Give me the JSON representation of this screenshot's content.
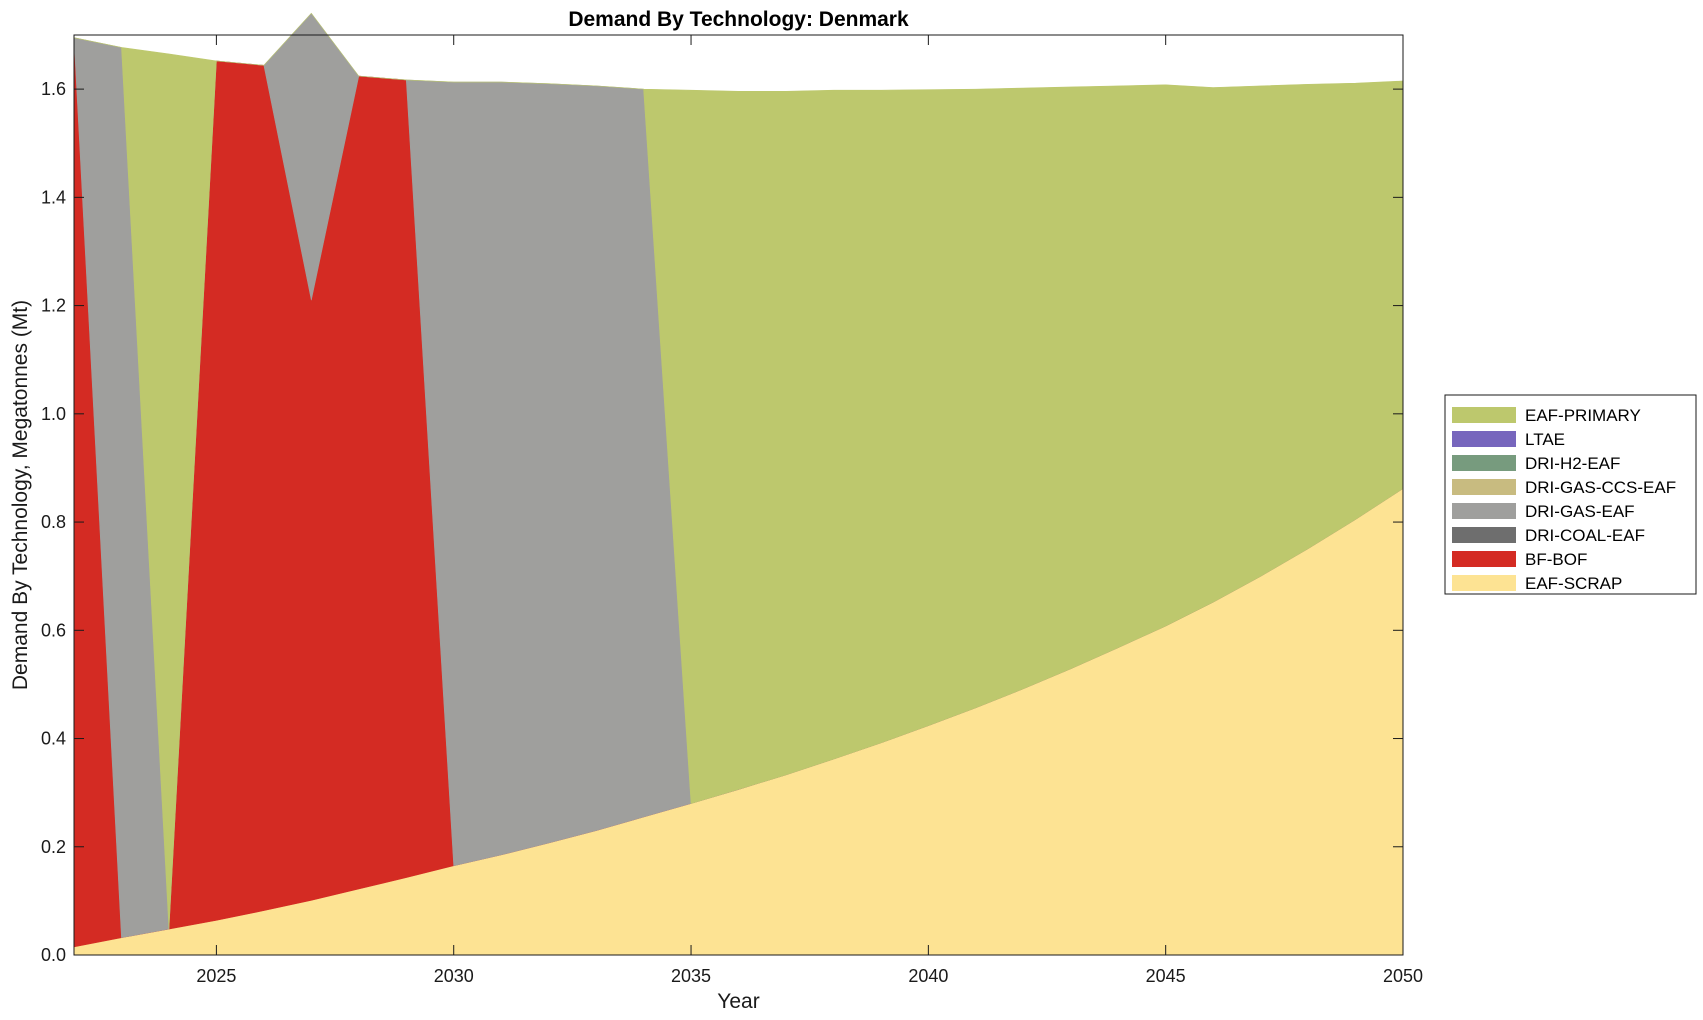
{
  "chart_data": {
    "type": "area",
    "stacked": true,
    "title": "Demand By Technology: Denmark",
    "xlabel": "Year",
    "ylabel": "Demand By Technology, Megatonnes (Mt)",
    "xlim": [
      2022,
      2050
    ],
    "ylim": [
      0,
      1.7
    ],
    "xticks": [
      2025,
      2030,
      2035,
      2040,
      2045,
      2050
    ],
    "yticks": [
      0.0,
      0.2,
      0.4,
      0.6,
      0.8,
      1.0,
      1.2,
      1.4,
      1.6
    ],
    "ytick_labels": [
      "0.0",
      "0.2",
      "0.4",
      "0.6",
      "0.8",
      "1.0",
      "1.2",
      "1.4",
      "1.6"
    ],
    "grid": false,
    "legend_position": "right",
    "x": [
      2022,
      2023,
      2024,
      2025,
      2026,
      2027,
      2028,
      2029,
      2030,
      2031,
      2032,
      2033,
      2034,
      2035,
      2036,
      2037,
      2038,
      2039,
      2040,
      2041,
      2042,
      2043,
      2044,
      2045,
      2046,
      2047,
      2048,
      2049,
      2050
    ],
    "series": [
      {
        "name": "EAF-SCRAP",
        "color": "#fde393",
        "values": [
          0.015,
          0.032,
          0.048,
          0.064,
          0.082,
          0.101,
          0.122,
          0.143,
          0.165,
          0.185,
          0.207,
          0.23,
          0.255,
          0.28,
          0.306,
          0.333,
          0.362,
          0.392,
          0.424,
          0.457,
          0.492,
          0.529,
          0.568,
          0.608,
          0.652,
          0.7,
          0.751,
          0.805,
          0.862
        ]
      },
      {
        "name": "BF-BOF",
        "color": "#d42b23",
        "values": [
          1.68,
          0,
          0,
          1.588,
          1.562,
          1.109,
          1.502,
          1.474,
          0,
          0,
          0,
          0,
          0,
          0,
          0,
          0,
          0,
          0,
          0,
          0,
          0,
          0,
          0,
          0,
          0,
          0,
          0,
          0,
          0
        ]
      },
      {
        "name": "DRI-COAL-EAF",
        "color": "#6e6e6e",
        "values": [
          0,
          0,
          0,
          0,
          0,
          0,
          0,
          0,
          0,
          0,
          0,
          0,
          0,
          0,
          0,
          0,
          0,
          0,
          0,
          0,
          0,
          0,
          0,
          0,
          0,
          0,
          0,
          0,
          0
        ]
      },
      {
        "name": "DRI-GAS-EAF",
        "color": "#9f9f9d",
        "values": [
          0,
          1.645,
          0,
          0,
          0,
          0.53,
          0,
          0,
          1.448,
          1.428,
          1.403,
          1.376,
          1.345,
          0,
          0,
          0,
          0,
          0,
          0,
          0,
          0,
          0,
          0,
          0,
          0,
          0,
          0,
          0,
          0
        ]
      },
      {
        "name": "DRI-GAS-CCS-EAF",
        "color": "#c8bb80",
        "values": [
          0,
          0,
          0,
          0,
          0,
          0,
          0,
          0,
          0,
          0,
          0,
          0,
          0,
          0,
          0,
          0,
          0,
          0,
          0,
          0,
          0,
          0,
          0,
          0,
          0,
          0,
          0,
          0,
          0
        ]
      },
      {
        "name": "DRI-H2-EAF",
        "color": "#779b7e",
        "values": [
          0,
          0,
          0,
          0,
          0,
          0,
          0,
          0,
          0,
          0,
          0,
          0,
          0,
          0,
          0,
          0,
          0,
          0,
          0,
          0,
          0,
          0,
          0,
          0,
          0,
          0,
          0,
          0,
          0
        ]
      },
      {
        "name": "LTAE",
        "color": "#7766bd",
        "values": [
          0,
          0,
          0,
          0,
          0,
          0,
          0,
          0,
          0,
          0,
          0,
          0,
          0,
          0,
          0,
          0,
          0,
          0,
          0,
          0,
          0,
          0,
          0,
          0,
          0,
          0,
          0,
          0,
          0
        ]
      },
      {
        "name": "EAF-PRIMARY",
        "color": "#bdc86d",
        "values": [
          0,
          0,
          1.617,
          0,
          0,
          0,
          0,
          0,
          0,
          0,
          0,
          0,
          0,
          1.318,
          1.29,
          1.263,
          1.236,
          1.206,
          1.175,
          1.143,
          1.11,
          1.075,
          1.038,
          1.0,
          0.951,
          0.906,
          0.858,
          0.806,
          0.753
        ]
      }
    ],
    "legend_order": [
      "EAF-PRIMARY",
      "LTAE",
      "DRI-H2-EAF",
      "DRI-GAS-CCS-EAF",
      "DRI-GAS-EAF",
      "DRI-COAL-EAF",
      "BF-BOF",
      "EAF-SCRAP"
    ]
  }
}
